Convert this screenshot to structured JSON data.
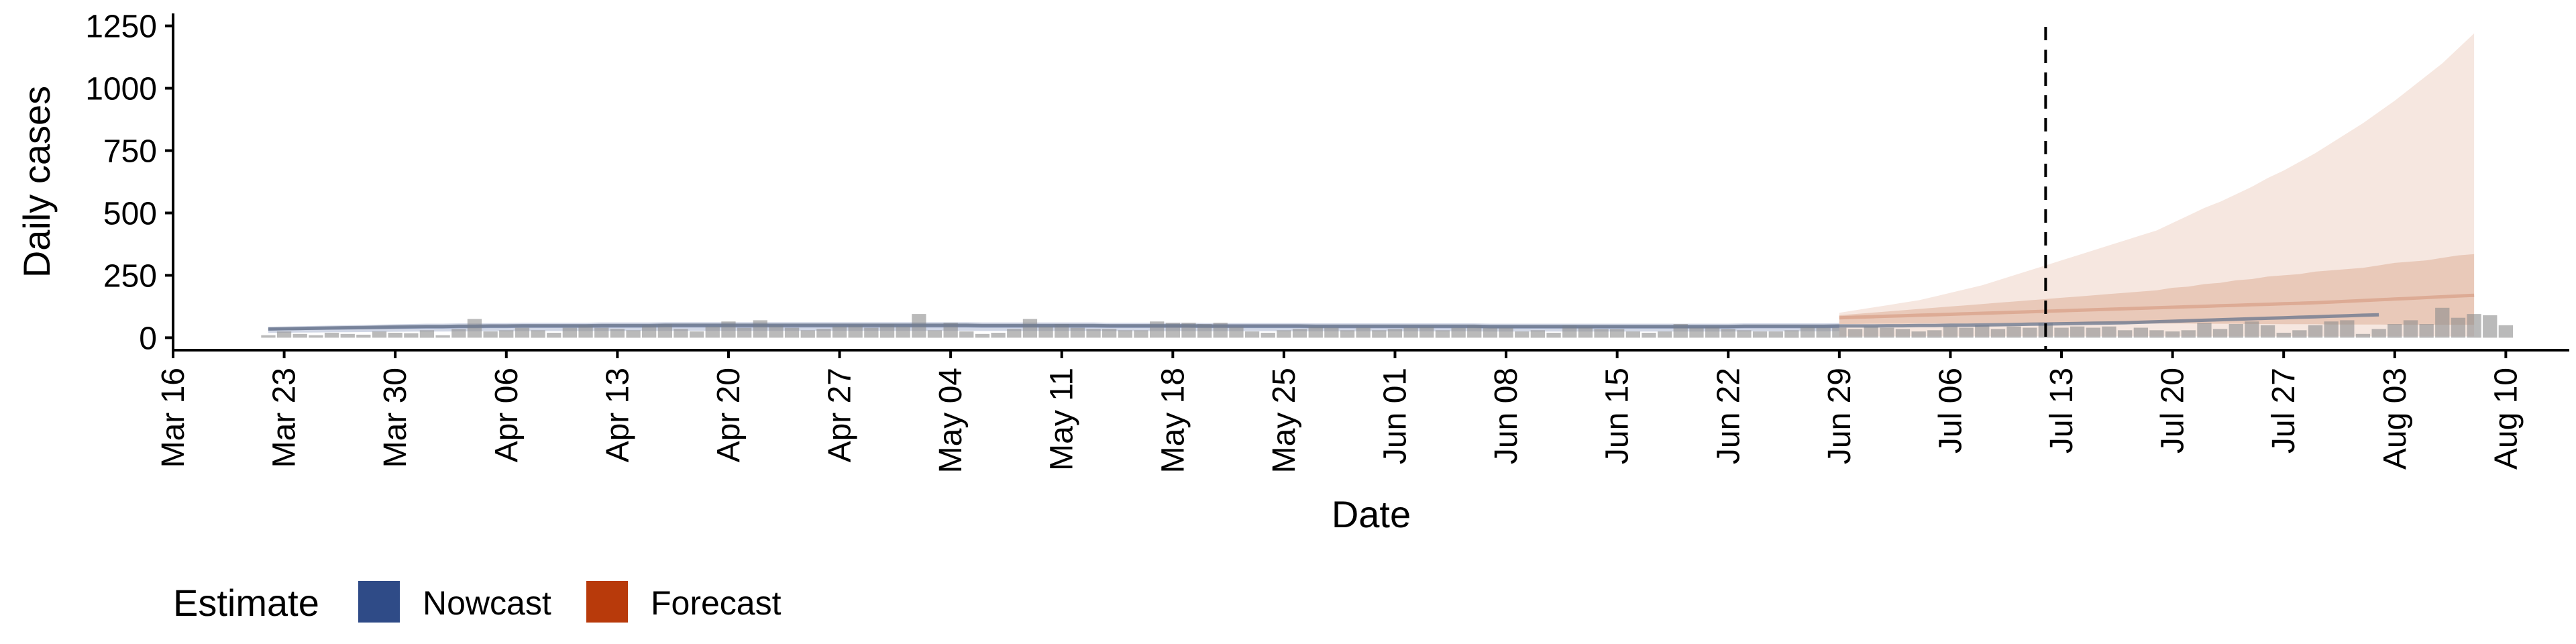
{
  "chart_data": {
    "type": "bar",
    "xlabel": "Date",
    "ylabel": "Daily cases",
    "ylim": [
      -50,
      1300
    ],
    "y_ticks": [
      0,
      250,
      500,
      750,
      1000,
      1250
    ],
    "x_range": [
      "2020-03-16",
      "2020-08-14"
    ],
    "x_ticks": [
      "2020-03-16",
      "2020-03-23",
      "2020-03-30",
      "2020-04-06",
      "2020-04-13",
      "2020-04-20",
      "2020-04-27",
      "2020-05-04",
      "2020-05-11",
      "2020-05-18",
      "2020-05-25",
      "2020-06-01",
      "2020-06-08",
      "2020-06-15",
      "2020-06-22",
      "2020-06-29",
      "2020-07-06",
      "2020-07-13",
      "2020-07-20",
      "2020-07-27",
      "2020-08-03",
      "2020-08-10"
    ],
    "x_tick_labels": [
      "Mar 16",
      "Mar 23",
      "Mar 30",
      "Apr 06",
      "Apr 13",
      "Apr 20",
      "Apr 27",
      "May 04",
      "May 11",
      "May 18",
      "May 25",
      "Jun 01",
      "Jun 08",
      "Jun 15",
      "Jun 22",
      "Jun 29",
      "Jul 06",
      "Jul 13",
      "Jul 20",
      "Jul 27",
      "Aug 03",
      "Aug 10"
    ],
    "forecast_date": "2020-07-12",
    "grid": false,
    "legend": {
      "title": "Estimate",
      "position": "bottom-left",
      "items": [
        {
          "name": "Nowcast",
          "color": "#2f4b87"
        },
        {
          "name": "Forecast",
          "color": "#b83a0b"
        }
      ]
    },
    "observed": {
      "start_date": "2020-03-22",
      "values": [
        10,
        25,
        15,
        10,
        20,
        15,
        12,
        25,
        20,
        18,
        30,
        10,
        35,
        75,
        25,
        30,
        40,
        30,
        20,
        40,
        50,
        40,
        35,
        30,
        50,
        55,
        35,
        25,
        45,
        65,
        40,
        70,
        50,
        40,
        30,
        35,
        45,
        50,
        40,
        55,
        45,
        95,
        30,
        60,
        25,
        15,
        20,
        35,
        75,
        45,
        55,
        40,
        35,
        35,
        30,
        30,
        65,
        60,
        60,
        55,
        60,
        45,
        25,
        20,
        30,
        35,
        45,
        40,
        30,
        40,
        30,
        35,
        40,
        45,
        30,
        40,
        50,
        40,
        40,
        25,
        30,
        20,
        50,
        45,
        35,
        35,
        25,
        20,
        25,
        55,
        40,
        45,
        35,
        30,
        25,
        25,
        30,
        45,
        40,
        40,
        35,
        45,
        40,
        35,
        25,
        30,
        45,
        40,
        50,
        35,
        45,
        40,
        60,
        40,
        45,
        40,
        45,
        30,
        40,
        30,
        25,
        30,
        60,
        35,
        55,
        65,
        50,
        20,
        30,
        50,
        65,
        70,
        15,
        35,
        55,
        70,
        55,
        120,
        80,
        95,
        90,
        50
      ]
    },
    "nowcast": {
      "start_date": "2020-03-22",
      "median": [
        35,
        36,
        37,
        38,
        39,
        40,
        41,
        42,
        43,
        44,
        45,
        45,
        46,
        46,
        47,
        47,
        48,
        48,
        48,
        48,
        48,
        49,
        49,
        49,
        49,
        50,
        50,
        50,
        50,
        50,
        50,
        50,
        50,
        50,
        50,
        50,
        50,
        50,
        50,
        50,
        50,
        50,
        50,
        50,
        50,
        49,
        49,
        49,
        49,
        49,
        49,
        49,
        49,
        48,
        48,
        48,
        48,
        48,
        48,
        47,
        47,
        47,
        47,
        47,
        47,
        47,
        46,
        46,
        46,
        46,
        46,
        46,
        46,
        46,
        46,
        46,
        46,
        45,
        45,
        45,
        45,
        45,
        45,
        45,
        45,
        45,
        45,
        45,
        45,
        45,
        45,
        45,
        45,
        46,
        46,
        46,
        46,
        46,
        46,
        47,
        47,
        47,
        48,
        48,
        49,
        49,
        50,
        50,
        51,
        52,
        53,
        54,
        55,
        56,
        57,
        58,
        59,
        60,
        62,
        64,
        66,
        68,
        70,
        72,
        74,
        76,
        78,
        80,
        82,
        84,
        86,
        88,
        90,
        92
      ],
      "inner": [
        [
          20,
          45
        ],
        [
          22,
          48
        ],
        [
          24,
          50
        ],
        [
          26,
          52
        ],
        [
          28,
          54
        ],
        [
          30,
          55
        ],
        [
          32,
          56
        ],
        [
          34,
          57
        ],
        [
          35,
          58
        ],
        [
          36,
          59
        ],
        [
          37,
          60
        ],
        [
          38,
          60
        ]
      ],
      "inner_fill": "#7d8fb5",
      "outer_fill": "#c5cde0"
    },
    "forecast": {
      "start_date": "2020-06-29",
      "median": [
        80,
        82,
        84,
        86,
        88,
        90,
        92,
        94,
        96,
        98,
        100,
        102,
        104,
        106,
        108,
        110,
        112,
        114,
        116,
        118,
        120,
        122,
        124,
        126,
        128,
        130,
        132,
        134,
        136,
        138,
        140,
        143,
        146,
        149,
        152,
        155,
        158,
        161,
        164,
        167,
        170
      ],
      "inner_lower": [
        55,
        55,
        56,
        56,
        56,
        57,
        57,
        57,
        57,
        58,
        58,
        58,
        58,
        58,
        58,
        58,
        58,
        58,
        58,
        58,
        57,
        57,
        57,
        56,
        56,
        56,
        55,
        55,
        54,
        54,
        54,
        53,
        53,
        53,
        53,
        52,
        52,
        52,
        52,
        52,
        52
      ],
      "inner_upper": [
        90,
        95,
        100,
        105,
        110,
        115,
        120,
        125,
        130,
        135,
        140,
        145,
        150,
        155,
        160,
        165,
        170,
        175,
        180,
        185,
        190,
        200,
        205,
        215,
        220,
        230,
        235,
        245,
        250,
        255,
        265,
        270,
        275,
        280,
        290,
        300,
        305,
        310,
        320,
        330,
        335
      ],
      "outer_lower": [
        5,
        5,
        5,
        5,
        5,
        5,
        5,
        5,
        5,
        5,
        5,
        5,
        5,
        5,
        5,
        5,
        5,
        5,
        5,
        5,
        5,
        5,
        5,
        5,
        5,
        5,
        5,
        5,
        5,
        5,
        5,
        5,
        5,
        5,
        5,
        5,
        5,
        5,
        5,
        5,
        5
      ],
      "outer_upper": [
        100,
        110,
        120,
        130,
        140,
        150,
        165,
        180,
        195,
        210,
        230,
        250,
        270,
        290,
        310,
        330,
        350,
        370,
        390,
        410,
        430,
        460,
        490,
        520,
        545,
        575,
        605,
        640,
        670,
        705,
        740,
        780,
        820,
        860,
        905,
        950,
        1000,
        1050,
        1100,
        1160,
        1220
      ],
      "inner_fill": "#e6c3b2",
      "outer_fill": "#f6e7e0"
    }
  }
}
